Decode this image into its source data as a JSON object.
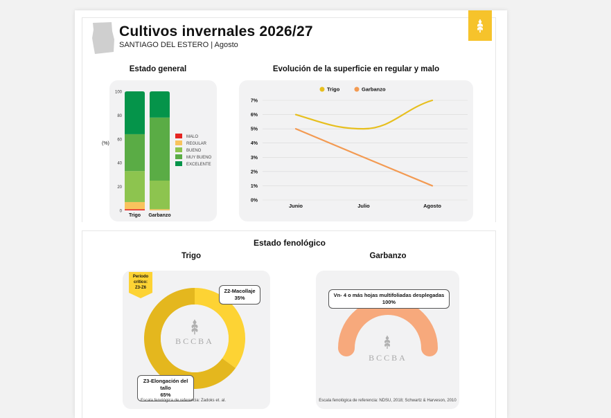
{
  "header": {
    "title": "Cultivos invernales 2026/27",
    "subtitle": "SANTIAGO DEL ESTERO | Agosto"
  },
  "colors": {
    "malo": "#e52521",
    "regular": "#f8c35d",
    "bueno": "#8dc44f",
    "muy_bueno": "#5aac45",
    "excelente": "#05944a",
    "trigo_line": "#e7bf1e",
    "garbanzo_line": "#f39a52",
    "donut_dark": "#e4b71e",
    "donut_light": "#fdd334",
    "arc": "#f7a97c",
    "brand": "#f6c32b"
  },
  "chart_data": [
    {
      "type": "bar",
      "stacked": true,
      "title": "Estado general",
      "ylabel": "(%)",
      "ylim": [
        0,
        100
      ],
      "yticks": [
        0,
        20,
        40,
        60,
        80,
        100
      ],
      "categories": [
        "Trigo",
        "Garbanzo"
      ],
      "series": [
        {
          "name": "MALO",
          "values": [
            1,
            0
          ]
        },
        {
          "name": "REGULAR",
          "values": [
            6,
            1
          ]
        },
        {
          "name": "BUENO",
          "values": [
            26,
            24
          ]
        },
        {
          "name": "MUY BUENO",
          "values": [
            31,
            53
          ]
        },
        {
          "name": "EXCELENTE",
          "values": [
            36,
            22
          ]
        }
      ],
      "legend": "right"
    },
    {
      "type": "line",
      "title": "Evolución de la superficie en regular y malo",
      "categories": [
        "Junio",
        "Julio",
        "Agosto"
      ],
      "ylim": [
        0,
        7
      ],
      "yticks": [
        "0%",
        "1%",
        "2%",
        "3%",
        "4%",
        "5%",
        "6%",
        "7%"
      ],
      "series": [
        {
          "name": "Trigo",
          "values": [
            6,
            5,
            7
          ]
        },
        {
          "name": "Garbanzo",
          "values": [
            5,
            3,
            1
          ]
        }
      ],
      "legend": "top",
      "grid": true
    }
  ],
  "fenologico": {
    "title": "Estado fenológico",
    "trigo": {
      "title": "Trigo",
      "flag_lines": [
        "Período",
        "crítico:",
        "Z3-Z6"
      ],
      "stages": [
        {
          "name": "Z2-Macollaje",
          "pct_label": "35%",
          "value": 35
        },
        {
          "name": "Z3-Elongación del tallo",
          "pct_label": "65%",
          "value": 65
        }
      ],
      "reference": "Escala fenológica de referencia: Zadoks et. al."
    },
    "garbanzo": {
      "title": "Garbanzo",
      "stages": [
        {
          "name": "Vn- 4 o más hojas multifoliadas desplegadas",
          "pct_label": "100%",
          "value": 100
        }
      ],
      "reference": "Escala fenológica de referencia: NDSU, 2018; Schwartz & Harveson, 2010"
    },
    "watermark": "BCCBA"
  }
}
